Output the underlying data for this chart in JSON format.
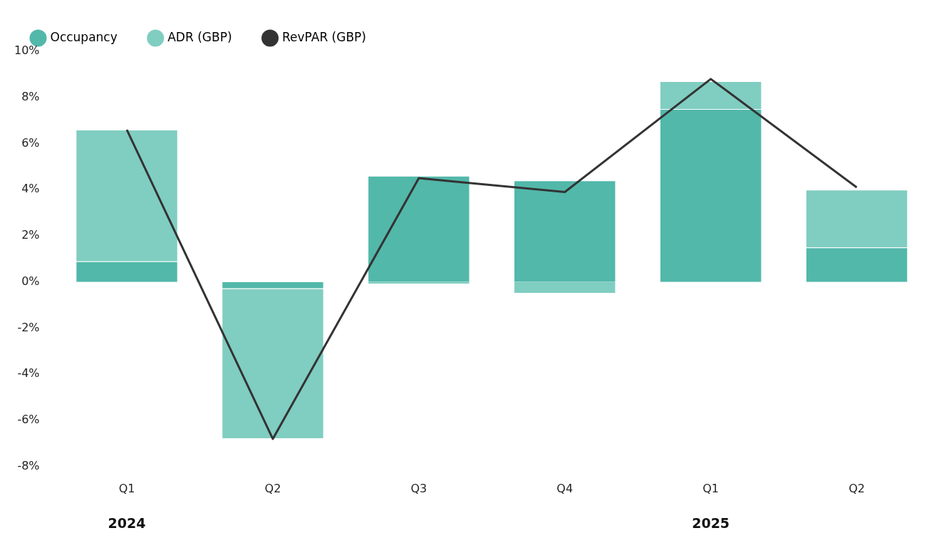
{
  "chart_data": {
    "type": "bar",
    "stacked": true,
    "categories": [
      "Q1",
      "Q2",
      "Q3",
      "Q4",
      "Q1",
      "Q2"
    ],
    "series": [
      {
        "name": "Occupancy",
        "color": "#52b8aa",
        "values": [
          0.9,
          -0.3,
          4.6,
          4.4,
          7.5,
          1.5
        ]
      },
      {
        "name": "ADR (GBP)",
        "color": "#80cdc1",
        "values": [
          5.7,
          -6.5,
          -0.1,
          -0.5,
          1.2,
          2.5
        ]
      },
      {
        "name": "RevPAR (GBP)",
        "type": "line",
        "color": "#333333",
        "values": [
          6.6,
          -6.8,
          4.5,
          3.9,
          8.8,
          4.1
        ]
      }
    ],
    "ylim": [
      -8,
      10
    ],
    "yticks": [
      {
        "value": -8,
        "label": "-8%"
      },
      {
        "value": -6,
        "label": "-6%"
      },
      {
        "value": -4,
        "label": "-4%"
      },
      {
        "value": -2,
        "label": "-2%"
      },
      {
        "value": 0,
        "label": "0%"
      },
      {
        "value": 2,
        "label": "2%"
      },
      {
        "value": 4,
        "label": "4%"
      },
      {
        "value": 6,
        "label": "6%"
      },
      {
        "value": 8,
        "label": "8%"
      },
      {
        "value": 10,
        "label": "10%"
      }
    ],
    "grid": false,
    "legend": "top left",
    "marker": "none",
    "annotations": [
      "2024",
      "2025"
    ]
  }
}
